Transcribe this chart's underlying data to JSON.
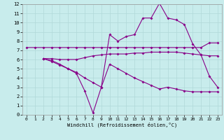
{
  "bg_color": "#c8ecec",
  "grid_color": "#b0d8d8",
  "line_color": "#880088",
  "xlabel": "Windchill (Refroidissement éolien,°C)",
  "xlim": [
    -0.5,
    23.5
  ],
  "ylim": [
    0,
    12
  ],
  "xticks": [
    0,
    1,
    2,
    3,
    4,
    5,
    6,
    7,
    8,
    9,
    10,
    11,
    12,
    13,
    14,
    15,
    16,
    17,
    18,
    19,
    20,
    21,
    22,
    23
  ],
  "yticks": [
    0,
    1,
    2,
    3,
    4,
    5,
    6,
    7,
    8,
    9,
    10,
    11,
    12
  ],
  "line1_x": [
    0,
    1,
    2,
    3,
    4,
    5,
    6,
    7,
    8,
    9,
    10,
    11,
    12,
    13,
    14,
    15,
    16,
    17,
    18,
    19,
    20,
    21,
    22,
    23
  ],
  "line1_y": [
    7.3,
    7.3,
    7.3,
    7.3,
    7.3,
    7.3,
    7.3,
    7.3,
    7.3,
    7.3,
    7.3,
    7.3,
    7.3,
    7.3,
    7.3,
    7.3,
    7.3,
    7.3,
    7.3,
    7.3,
    7.3,
    7.3,
    7.8,
    7.8
  ],
  "line2_x": [
    2,
    3,
    4,
    5,
    6,
    7,
    8,
    9,
    10,
    11,
    12,
    13,
    14,
    15,
    16,
    17,
    18,
    19,
    20,
    21,
    22,
    23
  ],
  "line2_y": [
    6.1,
    6.1,
    6.0,
    6.0,
    6.0,
    6.2,
    6.4,
    6.5,
    6.6,
    6.6,
    6.6,
    6.7,
    6.7,
    6.8,
    6.8,
    6.8,
    6.8,
    6.7,
    6.6,
    6.5,
    6.4,
    6.4
  ],
  "line3_x": [
    2,
    3,
    4,
    5,
    6,
    7,
    8,
    9,
    10,
    11,
    12,
    13,
    14,
    15,
    16,
    17,
    18,
    19,
    20,
    21,
    22,
    23
  ],
  "line3_y": [
    6.1,
    5.9,
    5.5,
    5.0,
    4.5,
    2.6,
    0.2,
    3.0,
    8.7,
    8.0,
    8.5,
    8.7,
    10.5,
    10.5,
    12.1,
    10.5,
    10.3,
    9.8,
    7.7,
    6.5,
    4.2,
    3.0
  ],
  "line4_x": [
    2,
    3,
    4,
    5,
    6,
    7,
    8,
    9,
    10,
    11,
    12,
    13,
    14,
    15,
    16,
    17,
    18,
    19,
    20,
    21,
    22,
    23
  ],
  "line4_y": [
    6.1,
    5.8,
    5.4,
    5.0,
    4.6,
    4.0,
    3.5,
    3.0,
    5.5,
    5.0,
    4.5,
    4.0,
    3.6,
    3.2,
    2.8,
    3.0,
    2.8,
    2.6,
    2.5,
    2.5,
    2.5,
    2.5
  ]
}
